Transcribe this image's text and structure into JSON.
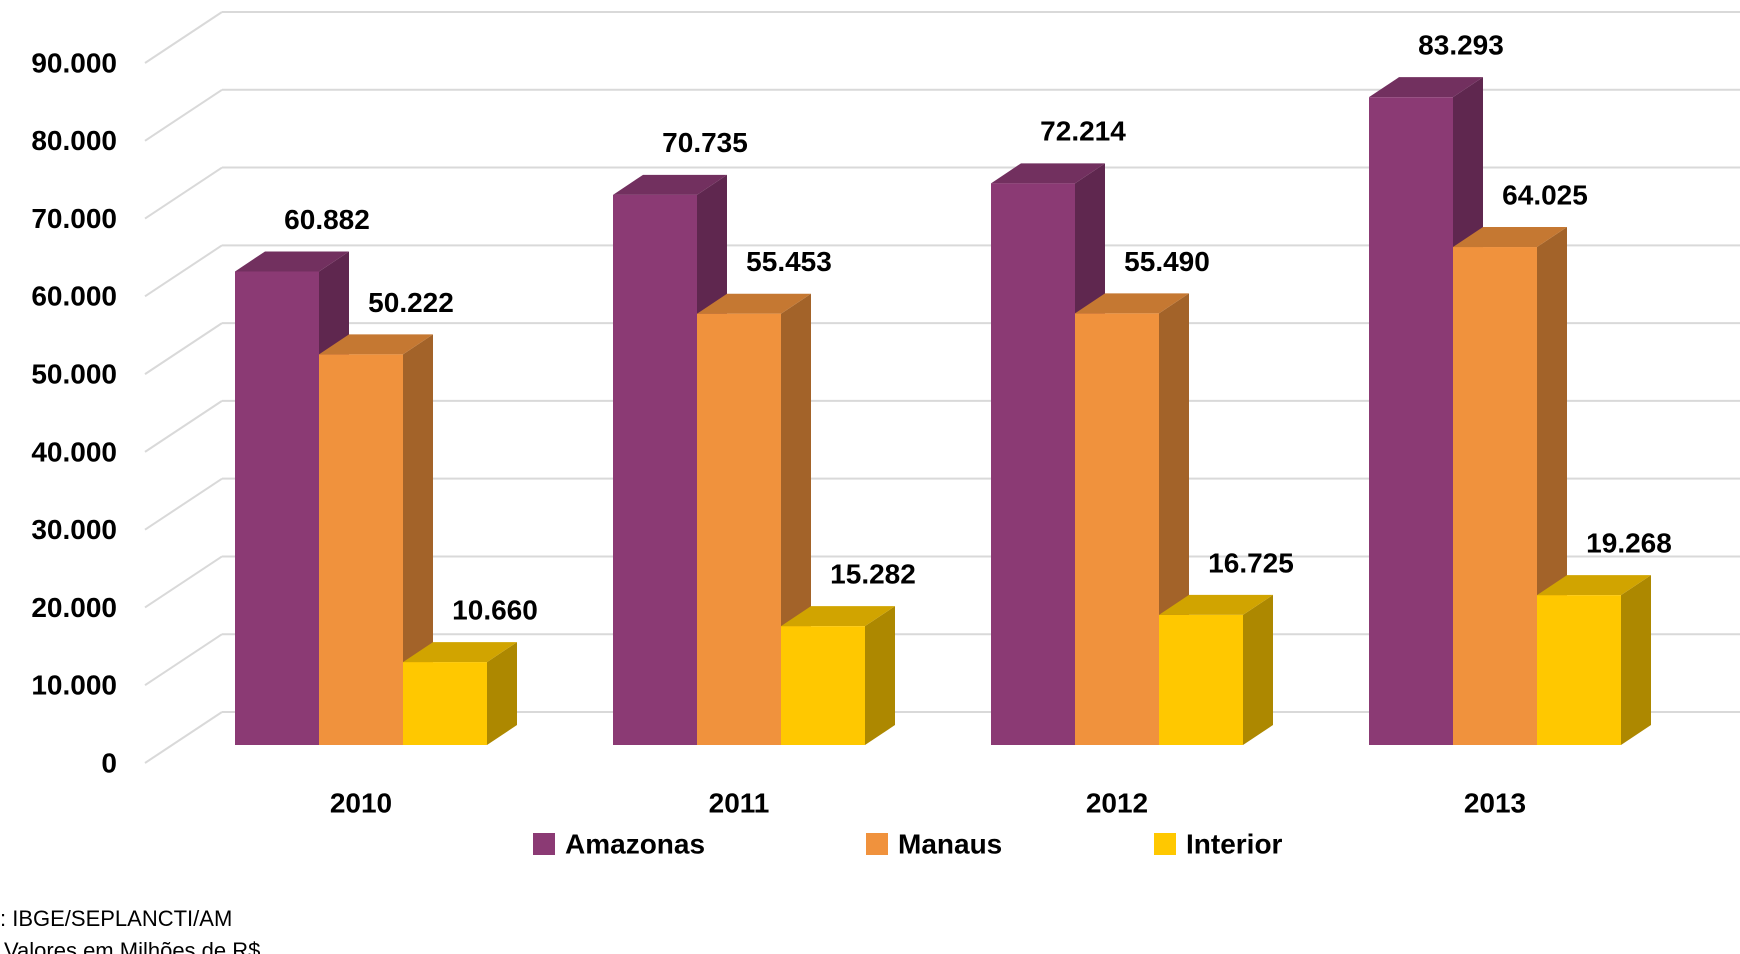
{
  "chart_data": {
    "type": "bar3d",
    "categories": [
      "2010",
      "2011",
      "2012",
      "2013"
    ],
    "series": [
      {
        "name": "Amazonas",
        "color": "#8b3a74",
        "values": [
          60882,
          70735,
          72214,
          83293
        ],
        "value_labels": [
          "60.882",
          "70.735",
          "72.214",
          "83.293"
        ]
      },
      {
        "name": "Manaus",
        "color": "#f0923d",
        "values": [
          50222,
          55453,
          55490,
          64025
        ],
        "value_labels": [
          "50.222",
          "55.453",
          "55.490",
          "64.025"
        ]
      },
      {
        "name": "Interior",
        "color": "#ffc800",
        "values": [
          10660,
          15282,
          16725,
          19268
        ],
        "value_labels": [
          "10.660",
          "15.282",
          "16.725",
          "19.268"
        ]
      }
    ],
    "ylim": [
      0,
      90000
    ],
    "yticks": [
      0,
      {
        "value": 10000,
        "label": "10.000"
      },
      {
        "value": 20000,
        "label": "20.000"
      },
      {
        "value": 30000,
        "label": "30.000"
      },
      {
        "value": 40000,
        "label": "40.000"
      },
      {
        "value": 50000,
        "label": "50.000"
      },
      {
        "value": 60000,
        "label": "60.000"
      },
      {
        "value": 70000,
        "label": "70.000"
      },
      {
        "value": 80000,
        "label": "80.000"
      },
      {
        "value": 90000,
        "label": "90.000"
      }
    ],
    "grid": true,
    "legend": "bottom",
    "annotations": [
      ": IBGE/SEPLANCTI/AM",
      "Valores em  Milhões de R$"
    ]
  }
}
